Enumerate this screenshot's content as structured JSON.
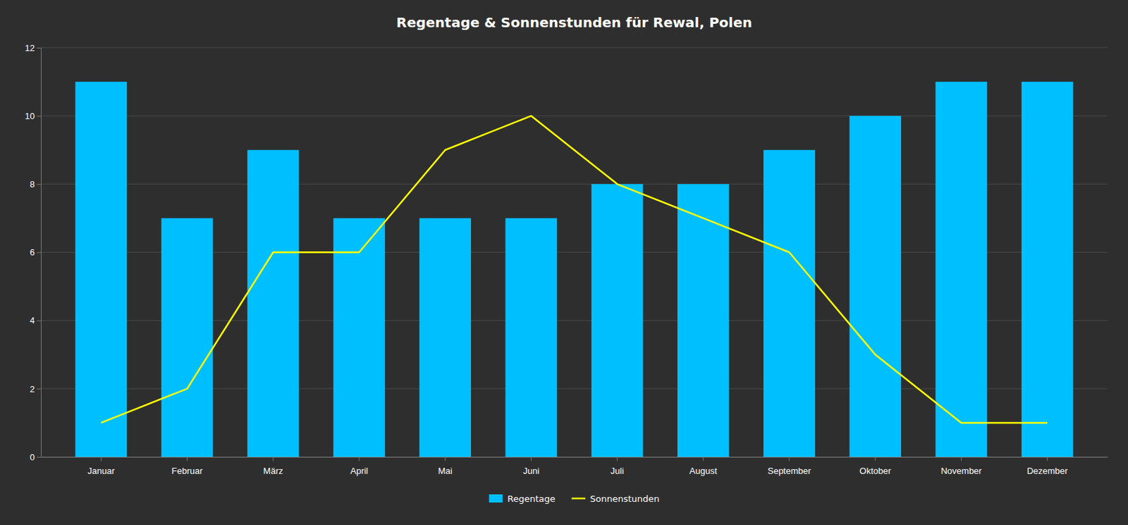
{
  "chart_data": {
    "type": "bar",
    "title": "Regentage & Sonnenstunden für Rewal, Polen",
    "categories": [
      "Januar",
      "Februar",
      "März",
      "April",
      "Mai",
      "Juni",
      "Juli",
      "August",
      "September",
      "Oktober",
      "November",
      "Dezember"
    ],
    "series": [
      {
        "name": "Regentage",
        "type": "bar",
        "color": "#00BFFF",
        "values": [
          11,
          7,
          9,
          7,
          7,
          7,
          8,
          8,
          9,
          10,
          11,
          11
        ]
      },
      {
        "name": "Sonnenstunden",
        "type": "line",
        "color": "#FFFF00",
        "values": [
          1,
          2,
          6,
          6,
          9,
          10,
          8,
          7,
          6,
          3,
          1,
          1
        ]
      }
    ],
    "ylim": [
      0,
      12
    ],
    "yticks": [
      0,
      2,
      4,
      6,
      8,
      10,
      12
    ],
    "grid": true,
    "legend": "bottom"
  }
}
